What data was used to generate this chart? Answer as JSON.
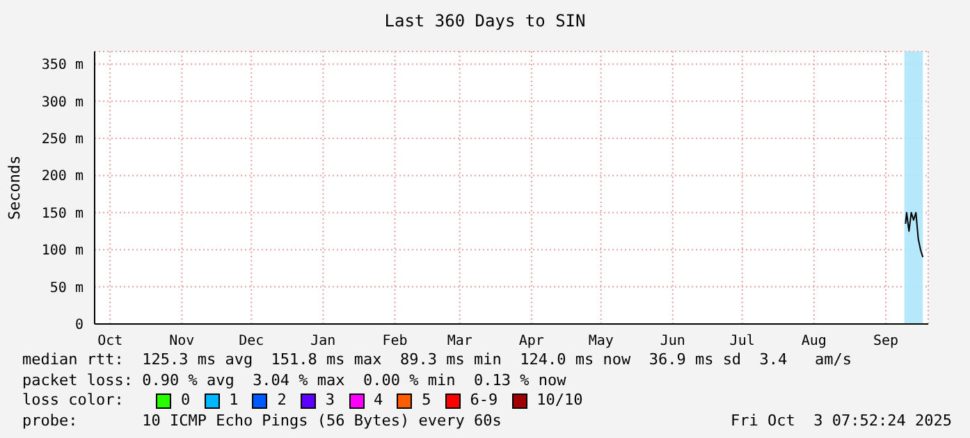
{
  "chart_data": {
    "type": "line",
    "title": "Last 360 Days to SIN",
    "ylabel": "Seconds",
    "x": [
      "2025-09-23T12:00",
      "2025-09-24",
      "2025-09-25",
      "2025-09-26",
      "2025-09-27",
      "2025-09-28",
      "2025-09-29",
      "2025-09-30",
      "2025-10-01"
    ],
    "series": [
      {
        "color": "#000000",
        "values": [
          135,
          150,
          125,
          150,
          140,
          150,
          115,
          100,
          90
        ]
      },
      {
        "name": "0",
        "color": "#26ff00",
        "values": [
          null,
          null,
          null,
          null,
          null,
          null,
          null,
          null,
          null
        ]
      },
      {
        "name": "1",
        "color": "#00b8ff",
        "values": [
          null,
          null,
          null,
          null,
          null,
          null,
          null,
          null,
          null
        ]
      },
      {
        "name": "2",
        "color": "#0059ff",
        "values": [
          null,
          null,
          null,
          null,
          null,
          null,
          null,
          null,
          null
        ]
      },
      {
        "name": "3",
        "color": "#5e00ff",
        "values": [
          null,
          null,
          null,
          null,
          null,
          null,
          null,
          null,
          null
        ]
      },
      {
        "name": "4",
        "color": "#ff00fe",
        "values": [
          null,
          null,
          null,
          null,
          null,
          null,
          null,
          null,
          null
        ]
      },
      {
        "name": "5",
        "color": "#ff5e00",
        "values": [
          null,
          null,
          null,
          null,
          null,
          null,
          null,
          null,
          null
        ]
      },
      {
        "name": "6-9",
        "color": "#ff0000",
        "values": [
          null,
          null,
          null,
          null,
          null,
          null,
          null,
          null,
          null
        ]
      },
      {
        "name": "10/10",
        "color": "#a10000",
        "values": [
          null,
          null,
          null,
          null,
          null,
          null,
          null,
          null,
          null
        ]
      }
    ],
    "xlim": [
      "2024-10-08T07:52",
      "2025-10-03T07:52"
    ],
    "xticks": [
      {
        "value": "2024-10-15",
        "label": "Oct"
      },
      {
        "value": "2024-11-15",
        "label": "Nov"
      },
      {
        "value": "2024-12-15",
        "label": "Dec"
      },
      {
        "value": "2025-01-15",
        "label": "Jan"
      },
      {
        "value": "2025-02-15",
        "label": "Feb"
      },
      {
        "value": "2025-03-15",
        "label": "Mar"
      },
      {
        "value": "2025-04-15",
        "label": "Apr"
      },
      {
        "value": "2025-05-15",
        "label": "May"
      },
      {
        "value": "2025-06-15",
        "label": "Jun"
      },
      {
        "value": "2025-07-15",
        "label": "Jul"
      },
      {
        "value": "2025-08-15",
        "label": "Aug"
      },
      {
        "value": "2025-09-15",
        "label": "Sep"
      }
    ],
    "ylim": [
      0,
      367
    ],
    "yticks": [
      0,
      {
        "value": 50,
        "label": "50 m"
      },
      {
        "value": 100,
        "label": "100 m"
      },
      {
        "value": 150,
        "label": "150 m"
      },
      {
        "value": 200,
        "label": "200 m"
      },
      {
        "value": 250,
        "label": "250 m"
      },
      {
        "value": 300,
        "label": "300 m"
      },
      {
        "value": 350,
        "label": "350 m"
      }
    ],
    "bands": [
      {
        "axis": "x",
        "from": "2025-09-23",
        "to": "2025-10-01",
        "color": "#aee6fb"
      }
    ],
    "grid": true,
    "legend": "bottom",
    "legend_title": "loss color:",
    "marker": "none",
    "line_style": "solid",
    "annotations": [
      "median rtt:  125.3 ms avg  151.8 ms max  89.3 ms min  124.0 ms now  36.9 ms sd  3.4   am/s",
      "packet loss: 0.90 % avg  3.04 % max  0.00 % min  0.13 % now",
      "probe:       10 ICMP Echo Pings (56 Bytes) every 60s",
      "Fri Oct  3 07:52:24 2025"
    ]
  }
}
